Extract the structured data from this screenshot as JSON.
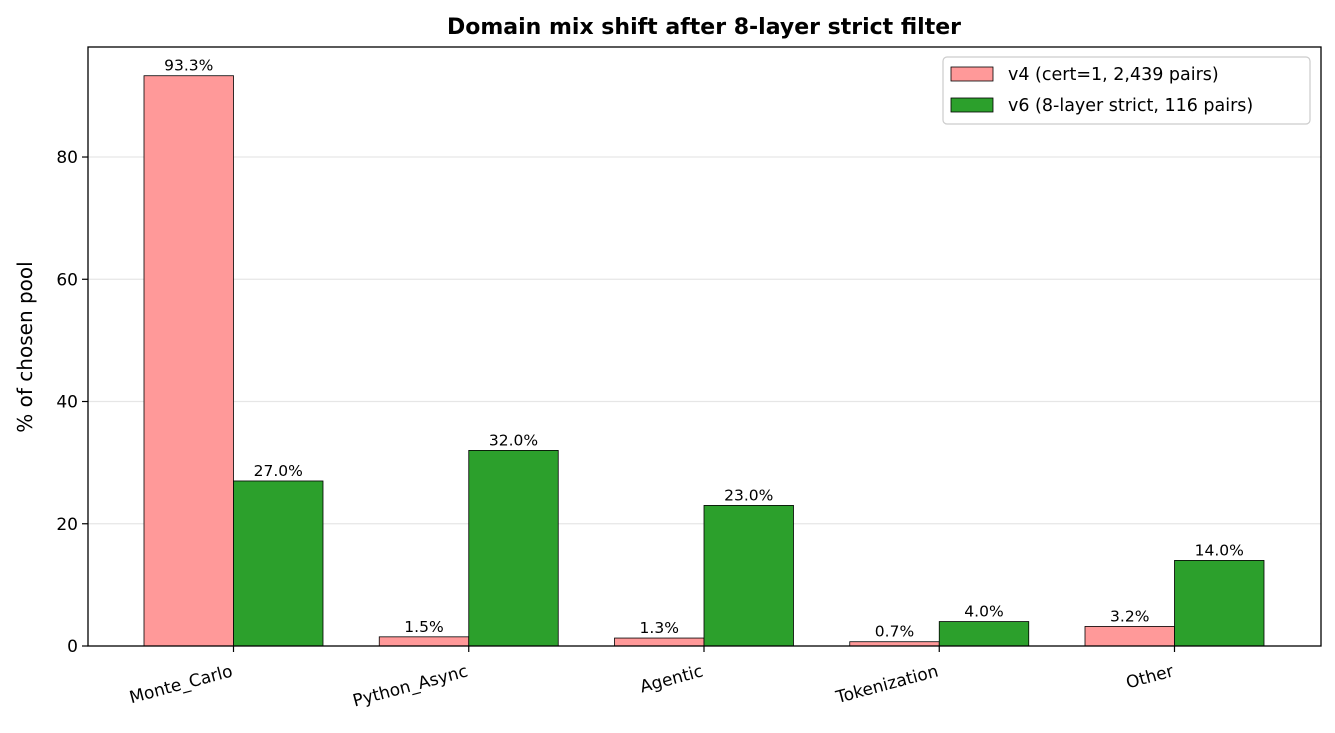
{
  "chart_data": {
    "type": "bar",
    "title": "Domain mix shift after 8-layer strict filter",
    "xlabel": "",
    "ylabel": "% of chosen pool",
    "categories": [
      "Monte_Carlo",
      "Python_Async",
      "Agentic",
      "Tokenization",
      "Other"
    ],
    "series": [
      {
        "name": "v4 (cert=1, 2,439 pairs)",
        "color": "#ff9999",
        "values": [
          93.3,
          1.5,
          1.3,
          0.7,
          3.2
        ],
        "labels": [
          "93.3%",
          "1.5%",
          "1.3%",
          "0.7%",
          "3.2%"
        ]
      },
      {
        "name": "v6 (8-layer strict, 116 pairs)",
        "color": "#2ca02c",
        "values": [
          27.0,
          32.0,
          23.0,
          4.0,
          14.0
        ],
        "labels": [
          "27.0%",
          "32.0%",
          "23.0%",
          "4.0%",
          "14.0%"
        ]
      }
    ],
    "ylim": [
      0,
      98
    ],
    "yticks": [
      0,
      20,
      40,
      60,
      80
    ],
    "ytick_labels": [
      "0",
      "20",
      "40",
      "60",
      "80"
    ],
    "grid": "y",
    "legend": "top-right"
  }
}
